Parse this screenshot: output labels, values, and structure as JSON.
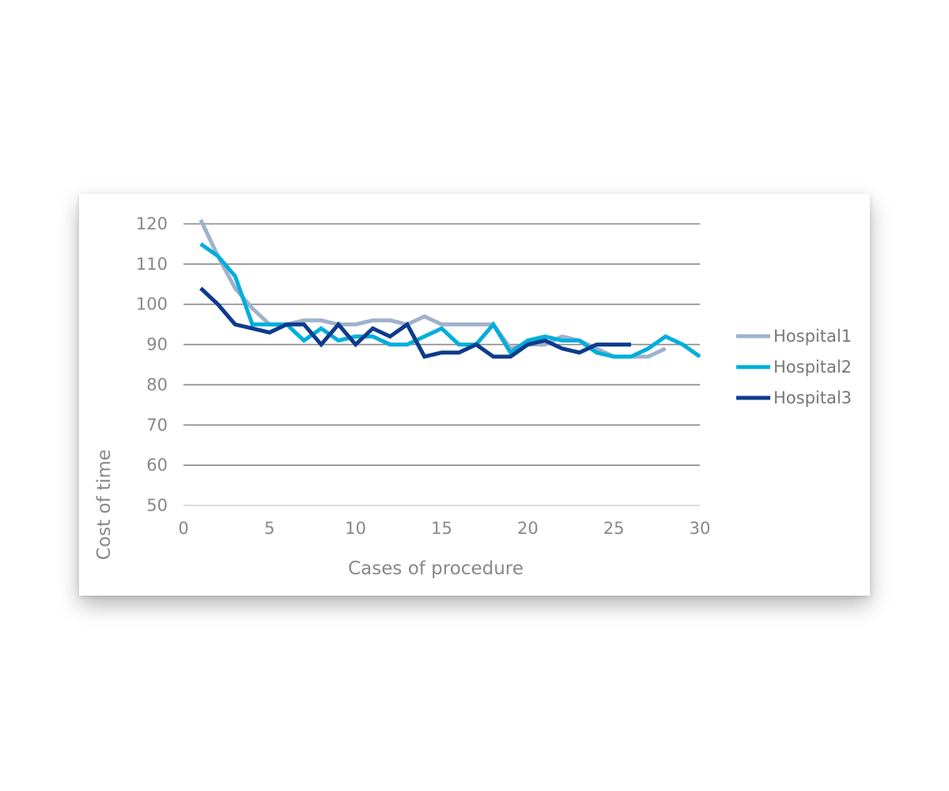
{
  "chart_data": {
    "type": "line",
    "xlabel": "Cases of procedure",
    "ylabel": "Cost of time",
    "xlim": [
      0,
      30
    ],
    "ylim": [
      50,
      120
    ],
    "x_ticks": [
      0,
      5,
      10,
      15,
      20,
      25,
      30
    ],
    "y_ticks": [
      50,
      60,
      70,
      80,
      90,
      100,
      110,
      120
    ],
    "grid": "horizontal",
    "legend_position": "right",
    "series": [
      {
        "name": "Hospital1",
        "color": "#9fb2cc",
        "x": [
          1,
          2,
          3,
          4,
          5,
          6,
          7,
          8,
          9,
          10,
          11,
          12,
          13,
          14,
          15,
          16,
          17,
          18,
          19,
          20,
          21,
          22,
          23,
          24,
          25,
          26,
          27,
          28
        ],
        "y": [
          121,
          112,
          104,
          99,
          95,
          95,
          96,
          96,
          95,
          95,
          96,
          96,
          95,
          97,
          95,
          95,
          95,
          95,
          89,
          90,
          90,
          92,
          91,
          89,
          87,
          87,
          87,
          89
        ]
      },
      {
        "name": "Hospital2",
        "color": "#00aedb",
        "x": [
          1,
          2,
          3,
          4,
          5,
          6,
          7,
          8,
          9,
          10,
          11,
          12,
          13,
          14,
          15,
          16,
          17,
          18,
          19,
          20,
          21,
          22,
          23,
          24,
          25,
          26,
          27,
          28,
          29,
          30
        ],
        "y": [
          115,
          112,
          107,
          95,
          95,
          95,
          91,
          94,
          91,
          92,
          92,
          90,
          90,
          92,
          94,
          90,
          90,
          95,
          88,
          91,
          92,
          91,
          91,
          88,
          87,
          87,
          89,
          92,
          90,
          87
        ]
      },
      {
        "name": "Hospital3",
        "color": "#0d3b8c",
        "x": [
          1,
          2,
          3,
          4,
          5,
          6,
          7,
          8,
          9,
          10,
          11,
          12,
          13,
          14,
          15,
          16,
          17,
          18,
          19,
          20,
          21,
          22,
          23,
          24,
          25,
          26
        ],
        "y": [
          104,
          100,
          95,
          94,
          93,
          95,
          95,
          90,
          95,
          90,
          94,
          92,
          95,
          87,
          88,
          88,
          90,
          87,
          87,
          90,
          91,
          89,
          88,
          90,
          90,
          90
        ]
      }
    ]
  }
}
